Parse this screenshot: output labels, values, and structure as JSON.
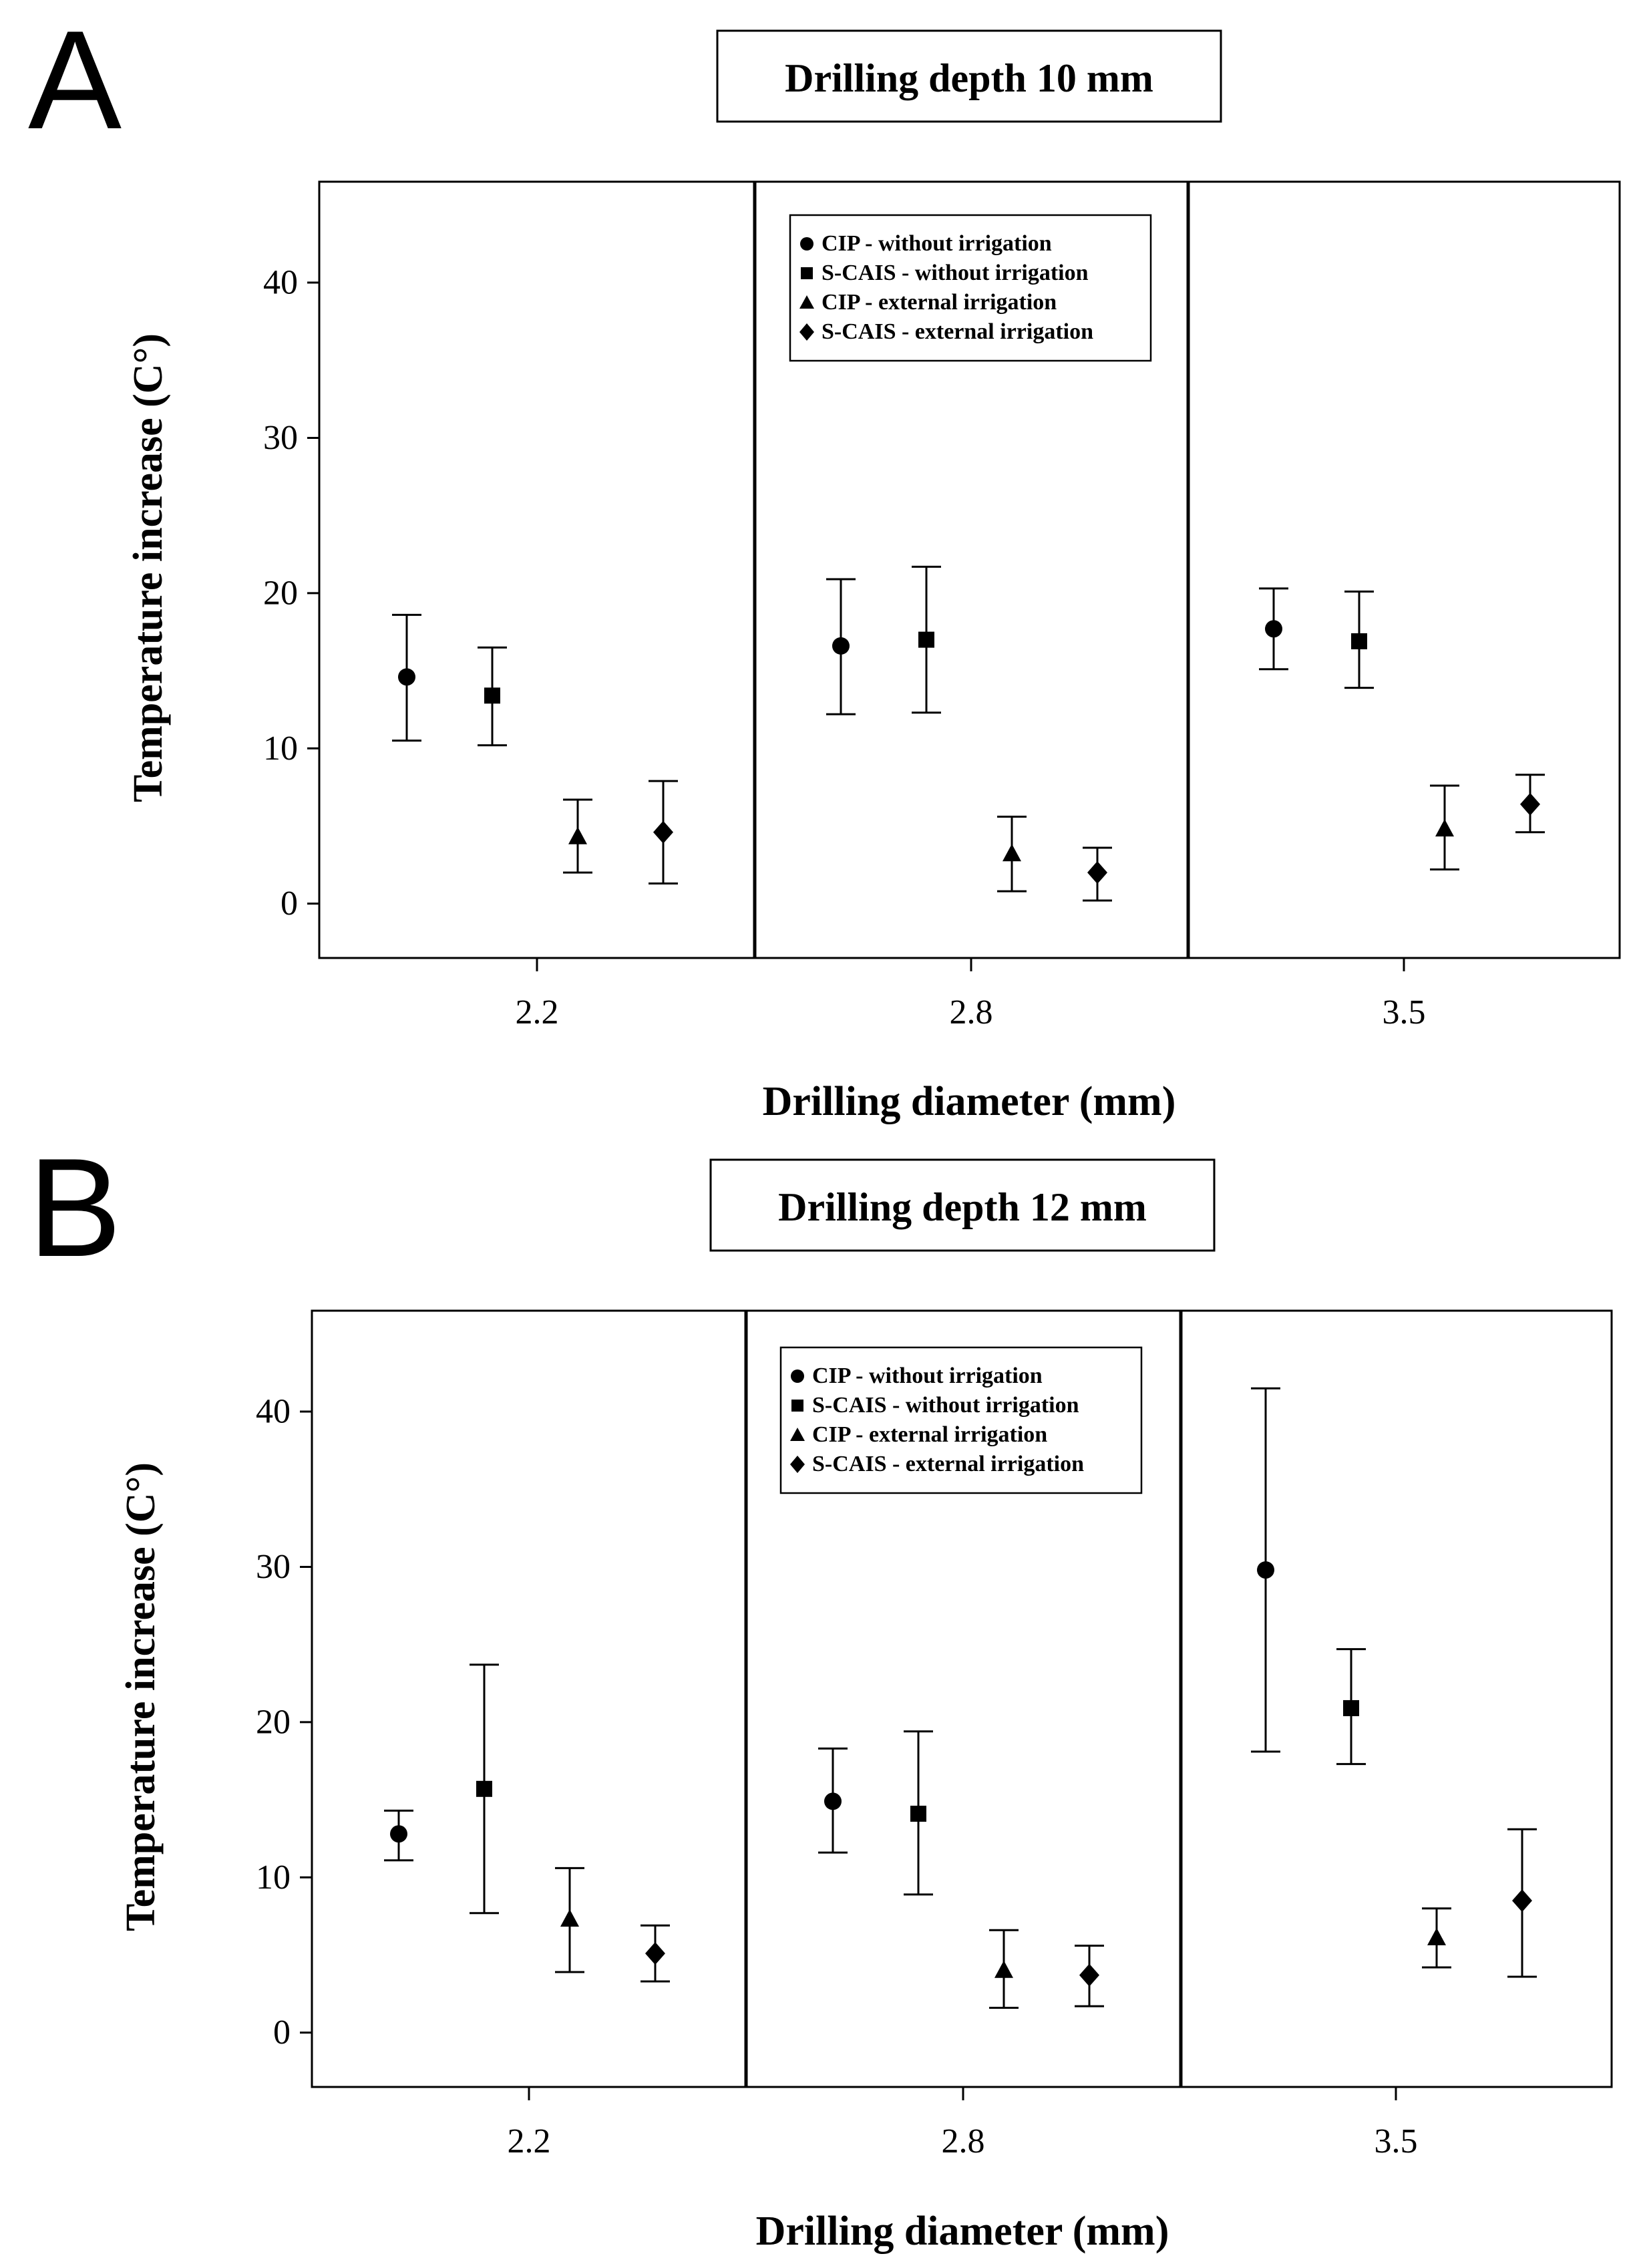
{
  "chart_data": [
    {
      "type": "scatter",
      "panel_label": "A",
      "title": "Drilling depth 10 mm",
      "xlabel": "Drilling diameter (mm)",
      "ylabel": "Temperature increase (C°)",
      "ylim": [
        -3.5,
        46.5
      ],
      "yticks": [
        0,
        10,
        20,
        30,
        40
      ],
      "categories": [
        "2.2",
        "2.8",
        "3.5"
      ],
      "legend_position": "top-center",
      "series": [
        {
          "name": "CIP - without irrigation",
          "marker": "circle",
          "values": [
            14.6,
            16.6,
            17.7
          ],
          "lower": [
            10.5,
            12.2,
            15.1
          ],
          "upper": [
            18.6,
            20.9,
            20.3
          ]
        },
        {
          "name": "S-CAIS - without irrigation",
          "marker": "square",
          "values": [
            13.4,
            17.0,
            16.9
          ],
          "lower": [
            10.2,
            12.3,
            13.9
          ],
          "upper": [
            16.5,
            21.7,
            20.1
          ]
        },
        {
          "name": "CIP - external irrigation",
          "marker": "triangle",
          "values": [
            4.3,
            3.2,
            4.8
          ],
          "lower": [
            2.0,
            0.8,
            2.2
          ],
          "upper": [
            6.7,
            5.6,
            7.6
          ]
        },
        {
          "name": "S-CAIS - external irrigation",
          "marker": "diamond",
          "values": [
            4.6,
            2.0,
            6.4
          ],
          "lower": [
            1.3,
            0.2,
            4.6
          ],
          "upper": [
            7.9,
            3.6,
            8.3
          ]
        }
      ]
    },
    {
      "type": "scatter",
      "panel_label": "B",
      "title": "Drilling depth 12 mm",
      "xlabel": "Drilling diameter (mm)",
      "ylabel": "Temperature increase (C°)",
      "ylim": [
        -3.5,
        46.5
      ],
      "yticks": [
        0,
        10,
        20,
        30,
        40
      ],
      "categories": [
        "2.2",
        "2.8",
        "3.5"
      ],
      "legend_position": "top-center",
      "series": [
        {
          "name": "CIP - without irrigation",
          "marker": "circle",
          "values": [
            12.8,
            14.9,
            29.8
          ],
          "lower": [
            11.1,
            11.6,
            18.1
          ],
          "upper": [
            14.3,
            18.3,
            41.5
          ]
        },
        {
          "name": "S-CAIS - without irrigation",
          "marker": "square",
          "values": [
            15.7,
            14.1,
            20.9
          ],
          "lower": [
            7.7,
            8.9,
            17.3
          ],
          "upper": [
            23.7,
            19.4,
            24.7
          ]
        },
        {
          "name": "CIP - external irrigation",
          "marker": "triangle",
          "values": [
            7.3,
            4.0,
            6.1
          ],
          "lower": [
            3.9,
            1.6,
            4.2
          ],
          "upper": [
            10.6,
            6.6,
            8.0
          ]
        },
        {
          "name": "S-CAIS - external irrigation",
          "marker": "diamond",
          "values": [
            5.1,
            3.7,
            8.5
          ],
          "lower": [
            3.3,
            1.7,
            3.6
          ],
          "upper": [
            6.9,
            5.6,
            13.1
          ]
        }
      ]
    }
  ]
}
